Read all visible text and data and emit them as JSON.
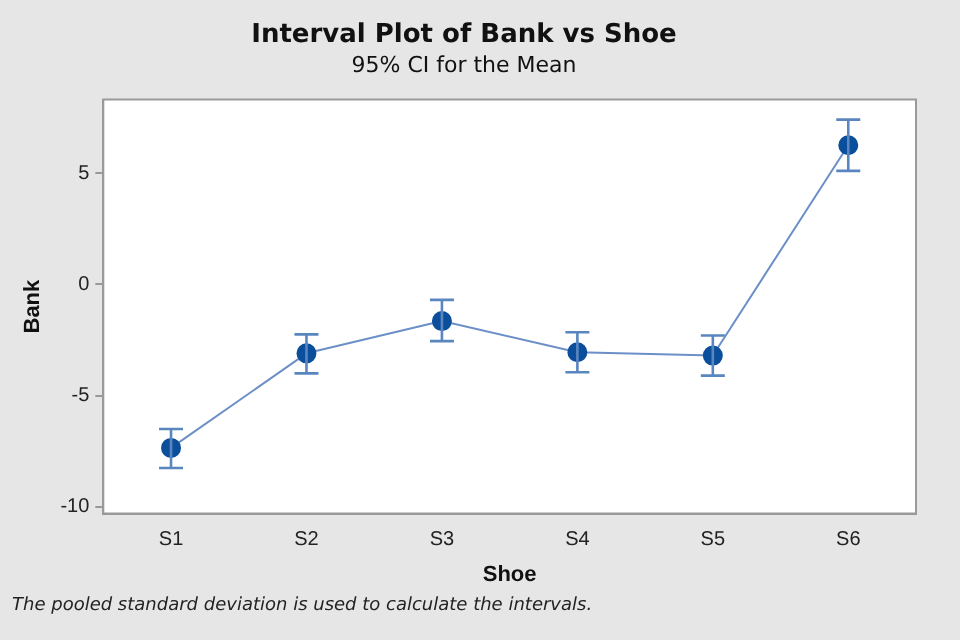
{
  "chart_data": {
    "type": "line",
    "title": "Interval Plot of Bank vs Shoe",
    "subtitle": "95% CI for the Mean",
    "xlabel": "Shoe",
    "ylabel": "Bank",
    "categories": [
      "S1",
      "S2",
      "S3",
      "S4",
      "S5",
      "S6"
    ],
    "series": [
      {
        "color": "#0b4f9c",
        "values": [
          -7.35,
          -3.1,
          -1.65,
          -3.05,
          -3.2,
          6.25
        ],
        "errors": [
          [
            -8.25,
            -6.5
          ],
          [
            -4.0,
            -2.25
          ],
          [
            -2.55,
            -0.7
          ],
          [
            -3.95,
            -2.15
          ],
          [
            -4.1,
            -2.3
          ],
          [
            5.1,
            7.4
          ]
        ]
      }
    ],
    "ylim": [
      -10.3,
      8.3
    ],
    "yticks": [
      -10,
      -5,
      0,
      5
    ],
    "grid": false,
    "legend": false,
    "marker": "circle",
    "line_style": "solid",
    "annotations": [
      "The pooled standard deviation is used to calculate the intervals."
    ]
  }
}
